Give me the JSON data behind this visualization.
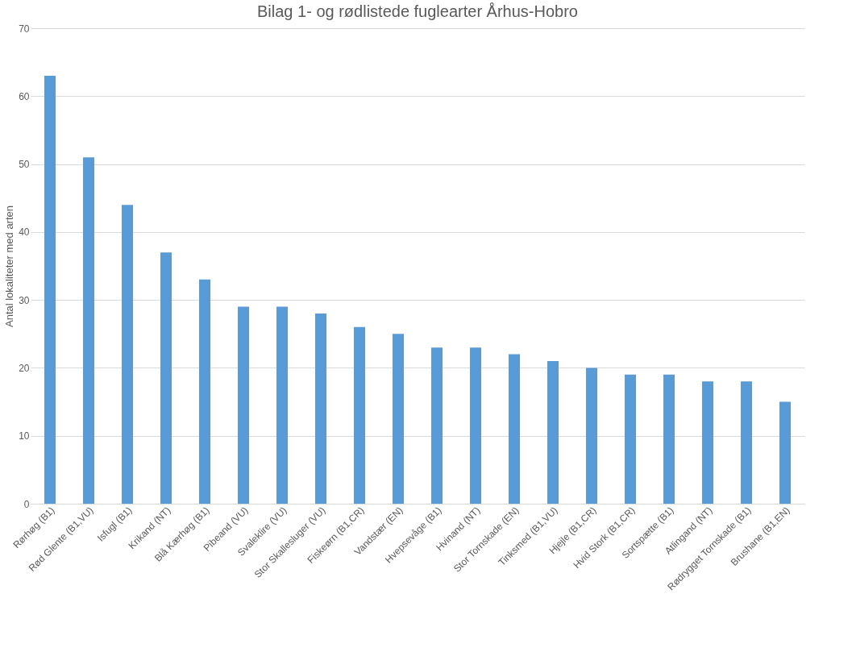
{
  "chart_data": {
    "type": "bar",
    "title": "Bilag 1- og rødlistede fuglearter Århus-Hobro",
    "ylabel": "Antal lokaliteter med arten",
    "categories": [
      "Rørhøg (B1)",
      "Rød Glente (B1,VU)",
      "Isfugl (B1)",
      "Krikand (NT)",
      "Blå Kærhøg (B1)",
      "Pibeand (VU)",
      "Svaleklire (VU)",
      "Stor Skallesluger (VU)",
      "Fiskeørn (B1,CR)",
      "Vandstær (EN)",
      "Hvepsevåge (B1)",
      "Hvinand (NT)",
      "Stor Tornskade (EN)",
      "Tinksmed (B1,VU)",
      "Hjejle (B1,CR)",
      "Hvid Stork (B1,CR)",
      "Sortspætte (B1)",
      "Atlingand (NT)",
      "Rødrygget Tornskade (B1)",
      "Brushane (B1,EN)"
    ],
    "values": [
      63,
      51,
      44,
      37,
      33,
      29,
      29,
      28,
      26,
      25,
      23,
      23,
      22,
      21,
      20,
      19,
      19,
      18,
      18,
      15
    ],
    "color": "#5b9bd5",
    "ylim": [
      0,
      70
    ],
    "yticks": [
      0,
      10,
      20,
      30,
      40,
      50,
      60,
      70
    ],
    "grid": "y"
  }
}
